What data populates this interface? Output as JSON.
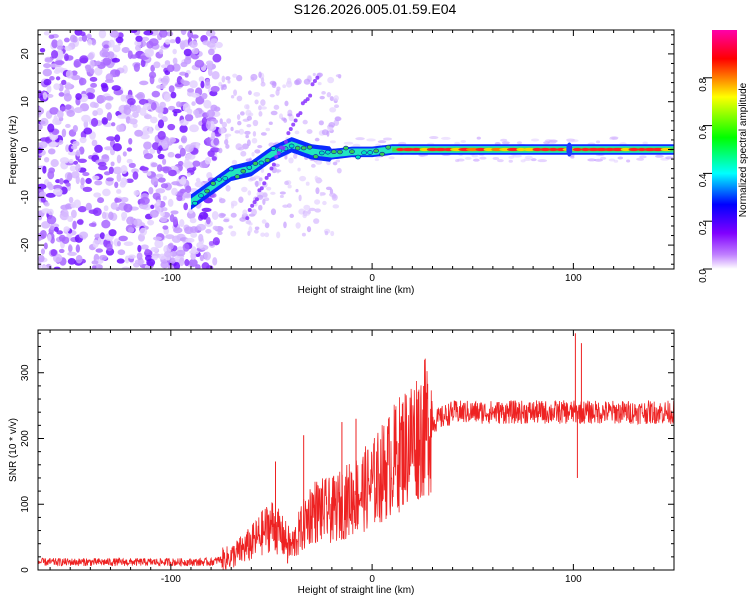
{
  "title": "S126.2026.005.01.59.E04",
  "chart_data": [
    {
      "type": "heatmap",
      "xlabel": "Height of straight line (km)",
      "ylabel": "Frequency (Hz)",
      "xlim": [
        -166,
        150
      ],
      "ylim": [
        -25,
        25
      ],
      "x_ticks": [
        -100,
        0,
        100
      ],
      "y_ticks": [
        -20,
        -10,
        0,
        10,
        20
      ],
      "colorbar": {
        "label": "Normalized spectral amplitude",
        "range": [
          0,
          1
        ],
        "ticks": [
          "0.0",
          "0.2",
          "0.4",
          "0.6",
          "0.8"
        ],
        "colormap": [
          "#ffffff",
          "#8000ff",
          "#0000ff",
          "#00ffff",
          "#00ff00",
          "#ffff00",
          "#ff0000",
          "#ff00aa"
        ]
      },
      "ridge": [
        {
          "x": -90,
          "y": -11
        },
        {
          "x": -80,
          "y": -8
        },
        {
          "x": -70,
          "y": -5
        },
        {
          "x": -60,
          "y": -4
        },
        {
          "x": -50,
          "y": -1
        },
        {
          "x": -40,
          "y": 1
        },
        {
          "x": -30,
          "y": -0.5
        },
        {
          "x": -20,
          "y": -1
        },
        {
          "x": -10,
          "y": -0.5
        },
        {
          "x": 0,
          "y": -0.5
        },
        {
          "x": 10,
          "y": 0
        },
        {
          "x": 50,
          "y": 0
        },
        {
          "x": 100,
          "y": 0
        },
        {
          "x": 150,
          "y": 0
        }
      ]
    },
    {
      "type": "line",
      "xlabel": "Height of straight line (km)",
      "ylabel": "SNR (10 * v/v)",
      "xlim": [
        -166,
        150
      ],
      "ylim": [
        0,
        365
      ],
      "x_ticks": [
        -100,
        0,
        100
      ],
      "y_ticks": [
        0,
        100,
        200,
        300
      ],
      "color": "#ee2222",
      "trend": [
        {
          "x": -166,
          "y": 12
        },
        {
          "x": -80,
          "y": 12
        },
        {
          "x": -70,
          "y": 20
        },
        {
          "x": -60,
          "y": 40
        },
        {
          "x": -50,
          "y": 70
        },
        {
          "x": -40,
          "y": 35
        },
        {
          "x": -30,
          "y": 90
        },
        {
          "x": -20,
          "y": 90
        },
        {
          "x": -10,
          "y": 110
        },
        {
          "x": 0,
          "y": 130
        },
        {
          "x": 10,
          "y": 165
        },
        {
          "x": 20,
          "y": 200
        },
        {
          "x": 30,
          "y": 225
        },
        {
          "x": 40,
          "y": 240
        },
        {
          "x": 60,
          "y": 240
        },
        {
          "x": 80,
          "y": 240
        },
        {
          "x": 100,
          "y": 240
        },
        {
          "x": 150,
          "y": 240
        }
      ],
      "spikes": [
        {
          "x": -48,
          "y": 165
        },
        {
          "x": -42,
          "y": 10
        },
        {
          "x": -34,
          "y": 205
        },
        {
          "x": -15,
          "y": 225
        },
        {
          "x": -8,
          "y": 230
        },
        {
          "x": 101,
          "y": 360
        },
        {
          "x": 102,
          "y": 140
        },
        {
          "x": 104,
          "y": 345
        }
      ]
    }
  ]
}
